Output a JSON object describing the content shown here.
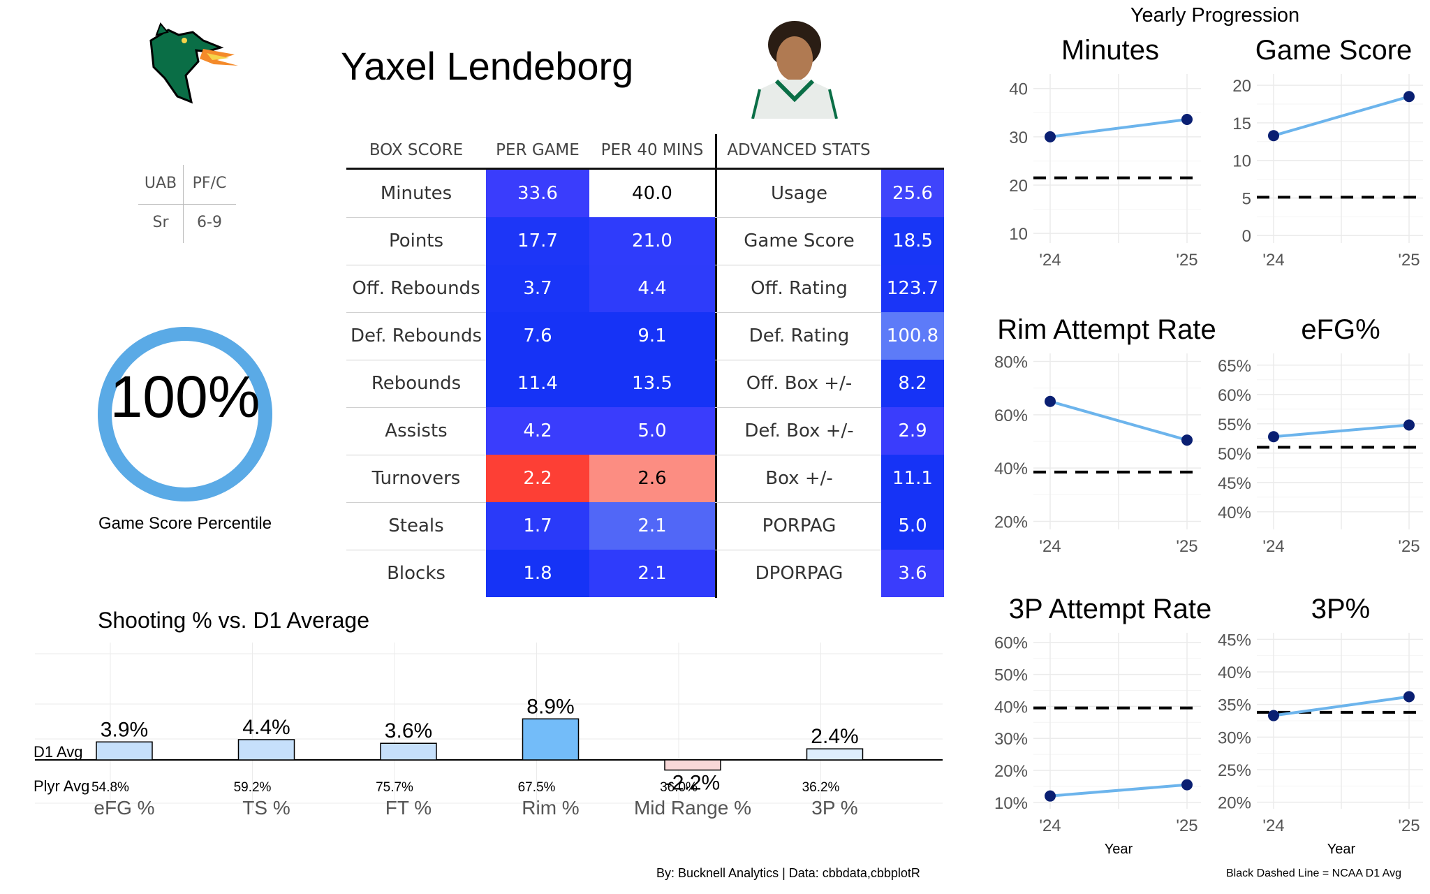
{
  "player": {
    "name": "Yaxel Lendeborg",
    "team": "UAB",
    "position": "PF/C",
    "class": "Sr",
    "height": "6-9"
  },
  "percentile": {
    "value": "100%",
    "fraction": 1.0,
    "label": "Game Score Percentile",
    "ring_color": "#5aaae6"
  },
  "stats_table": {
    "headers": {
      "box": "BOX SCORE",
      "per_game": "PER GAME",
      "per40": "PER 40 MINS",
      "adv": "ADVANCED STATS"
    },
    "rows": [
      {
        "label": "Minutes",
        "per_game": "33.6",
        "per40": "40.0",
        "adv_label": "Usage",
        "adv_value": "25.6",
        "c_pg": "#3a3dfc",
        "c_40": "#ffffff",
        "c_adv": "#3f44fb",
        "t_40": "#000000"
      },
      {
        "label": "Points",
        "per_game": "17.7",
        "per40": "21.0",
        "adv_label": "Game Score",
        "adv_value": "18.5",
        "c_pg": "#1d36f7",
        "c_40": "#2f3cfb",
        "c_adv": "#1836f6",
        "t_40": "#ffffff"
      },
      {
        "label": "Off. Rebounds",
        "per_game": "3.7",
        "per40": "4.4",
        "adv_label": "Off. Rating",
        "adv_value": "123.7",
        "c_pg": "#1a35f7",
        "c_40": "#2e3cfa",
        "c_adv": "#1a35f7",
        "t_40": "#ffffff"
      },
      {
        "label": "Def. Rebounds",
        "per_game": "7.6",
        "per40": "9.1",
        "adv_label": "Def. Rating",
        "adv_value": "100.8",
        "c_pg": "#1633f6",
        "c_40": "#1633f6",
        "c_adv": "#5d7bf8",
        "t_40": "#ffffff"
      },
      {
        "label": "Rebounds",
        "per_game": "11.4",
        "per40": "13.5",
        "adv_label": "Off. Box +/-",
        "adv_value": "8.2",
        "c_pg": "#1633f6",
        "c_40": "#1633f6",
        "c_adv": "#1633f6",
        "t_40": "#ffffff"
      },
      {
        "label": "Assists",
        "per_game": "4.2",
        "per40": "5.0",
        "adv_label": "Def. Box +/-",
        "adv_value": "2.9",
        "c_pg": "#3a3dfc",
        "c_40": "#3a3dfc",
        "c_adv": "#3a3dfc",
        "t_40": "#ffffff"
      },
      {
        "label": "Turnovers",
        "per_game": "2.2",
        "per40": "2.6",
        "adv_label": "Box +/-",
        "adv_value": "11.1",
        "c_pg": "#fd3f35",
        "c_40": "#fc8d82",
        "c_adv": "#1633f6",
        "t_40": "#000000"
      },
      {
        "label": "Steals",
        "per_game": "1.7",
        "per40": "2.1",
        "adv_label": "PORPAG",
        "adv_value": "5.0",
        "c_pg": "#2a3af9",
        "c_40": "#5167f7",
        "c_adv": "#1633f6",
        "t_40": "#ffffff"
      },
      {
        "label": "Blocks",
        "per_game": "1.8",
        "per40": "2.1",
        "adv_label": "DPORPAG",
        "adv_value": "3.6",
        "c_pg": "#1633f6",
        "c_40": "#2f3cfb",
        "c_adv": "#3a3dfc",
        "t_40": "#ffffff"
      }
    ]
  },
  "chart_data": [
    {
      "type": "bar",
      "title": "Shooting % vs. D1 Average",
      "baseline_label": "D1 Avg",
      "player_avg_label": "Plyr Avg",
      "categories": [
        "eFG %",
        "TS %",
        "FT %",
        "Rim %",
        "Mid Range %",
        "3P %"
      ],
      "values": [
        3.9,
        4.4,
        3.6,
        8.9,
        -2.2,
        2.4
      ],
      "value_labels": [
        "3.9%",
        "4.4%",
        "3.6%",
        "8.9%",
        "-2.2%",
        "2.4%"
      ],
      "player_avg": [
        "54.8%",
        "59.2%",
        "75.7%",
        "67.5%",
        "36.0%",
        "36.2%"
      ],
      "colors": [
        "#c6e0fb",
        "#c6e0fb",
        "#c6e0fb",
        "#73bcf9",
        "#f8d7d7",
        "#ddeefc"
      ],
      "ylim": [
        -4.5,
        12
      ]
    },
    {
      "type": "line",
      "title": "Minutes",
      "x": [
        "'24",
        "'25"
      ],
      "values": [
        30.0,
        33.6
      ],
      "d1_avg": 21.5,
      "ylim": [
        8,
        43
      ],
      "yticks": [
        10,
        20,
        30,
        40
      ],
      "ytick_labels": [
        "10",
        "20",
        "30",
        "40"
      ],
      "xlabel": ""
    },
    {
      "type": "line",
      "title": "Game Score",
      "x": [
        "'24",
        "'25"
      ],
      "values": [
        13.3,
        18.5
      ],
      "d1_avg": 5.1,
      "ylim": [
        -1,
        21.5
      ],
      "yticks": [
        0,
        5,
        10,
        15,
        20
      ],
      "ytick_labels": [
        "0",
        "5",
        "10",
        "15",
        "20"
      ],
      "xlabel": ""
    },
    {
      "type": "line",
      "title": "Rim Attempt Rate",
      "x": [
        "'24",
        "'25"
      ],
      "values": [
        65.0,
        50.5
      ],
      "d1_avg": 38.5,
      "ylim": [
        17,
        83
      ],
      "yticks": [
        20,
        40,
        60,
        80
      ],
      "ytick_labels": [
        "20%",
        "40%",
        "60%",
        "80%"
      ],
      "xlabel": ""
    },
    {
      "type": "line",
      "title": "eFG%",
      "x": [
        "'24",
        "'25"
      ],
      "values": [
        52.8,
        54.8
      ],
      "d1_avg": 51.0,
      "ylim": [
        37,
        67
      ],
      "yticks": [
        40,
        45,
        50,
        55,
        60,
        65
      ],
      "ytick_labels": [
        "40%",
        "45%",
        "50%",
        "55%",
        "60%",
        "65%"
      ],
      "xlabel": ""
    },
    {
      "type": "line",
      "title": "3P Attempt Rate",
      "x": [
        "'24",
        "'25"
      ],
      "values": [
        12.0,
        15.5
      ],
      "d1_avg": 39.5,
      "ylim": [
        8,
        63
      ],
      "yticks": [
        10,
        20,
        30,
        40,
        50,
        60
      ],
      "ytick_labels": [
        "10%",
        "20%",
        "30%",
        "40%",
        "50%",
        "60%"
      ],
      "xlabel": "Year"
    },
    {
      "type": "line",
      "title": "3P%",
      "x": [
        "'24",
        "'25"
      ],
      "values": [
        33.3,
        36.2
      ],
      "d1_avg": 33.8,
      "ylim": [
        19,
        46
      ],
      "yticks": [
        20,
        25,
        30,
        35,
        40,
        45
      ],
      "ytick_labels": [
        "20%",
        "25%",
        "30%",
        "35%",
        "40%",
        "45%"
      ],
      "xlabel": "Year"
    }
  ],
  "yearly_title": "Yearly Progression",
  "legend_note": "Black Dashed Line = NCAA D1 Avg",
  "credit": "By: Bucknell Analytics | Data: cbbdata,cbbplotR",
  "colors": {
    "line": "#6cb4ec",
    "point": "#0a1f72",
    "dashed": "#000000",
    "grid": "#ebebeb"
  },
  "icons": {
    "logo": "uab-dragon-logo",
    "headshot": "player-headshot"
  }
}
